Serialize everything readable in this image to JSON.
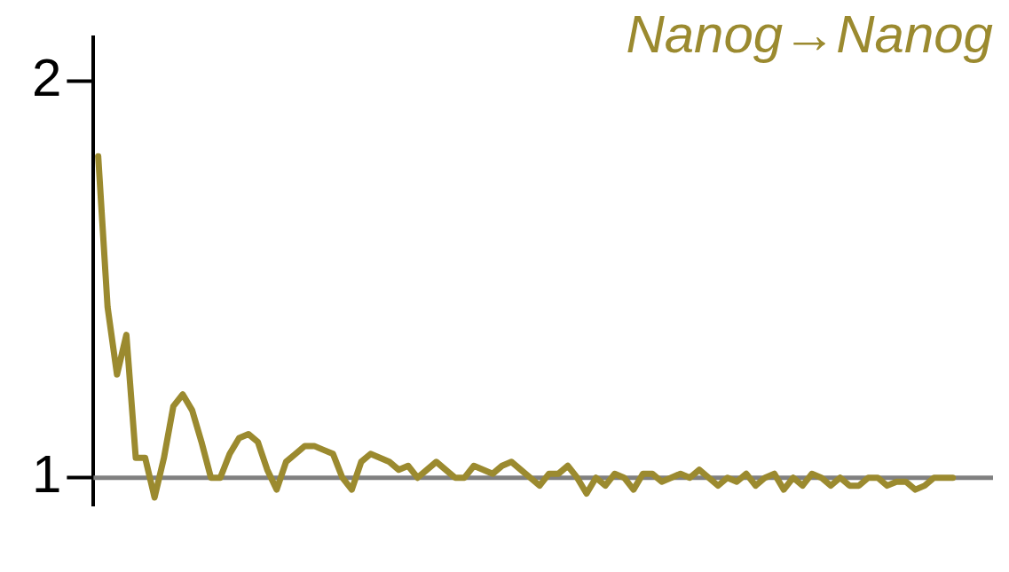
{
  "chart_data": {
    "type": "line",
    "title": "Nanog→Nanog",
    "categories": [
      null,
      null,
      null,
      null,
      null,
      null,
      null,
      null,
      null,
      null,
      null,
      null,
      null,
      null,
      null,
      null,
      null,
      null,
      null,
      null,
      null,
      null,
      null,
      null,
      null,
      null,
      null,
      null,
      null,
      null,
      null,
      null,
      null,
      null,
      null,
      null,
      null,
      null,
      null,
      null,
      null,
      null,
      null,
      null,
      null,
      null,
      null,
      null,
      null,
      null,
      null,
      null,
      null,
      null,
      null,
      null,
      null,
      null,
      null,
      null,
      null,
      null,
      null,
      null,
      null,
      null,
      null,
      null,
      null,
      null,
      null,
      null,
      null,
      null,
      null,
      null,
      null,
      null,
      null,
      null,
      null,
      null,
      null,
      null,
      null,
      null,
      null,
      null,
      null,
      null,
      null,
      null
    ],
    "series": [
      {
        "color": "#9b8a2f",
        "values": [
          1.81,
          1.43,
          1.26,
          1.36,
          1.05,
          1.05,
          0.95,
          1.05,
          1.18,
          1.21,
          1.17,
          1.09,
          1.0,
          1.0,
          1.06,
          1.1,
          1.11,
          1.09,
          1.02,
          0.97,
          1.04,
          1.06,
          1.08,
          1.08,
          1.07,
          1.06,
          1.0,
          0.97,
          1.04,
          1.06,
          1.05,
          1.04,
          1.02,
          1.03,
          1.0,
          1.02,
          1.04,
          1.02,
          1.0,
          1.0,
          1.03,
          1.02,
          1.01,
          1.03,
          1.04,
          1.02,
          1.0,
          0.98,
          1.01,
          1.01,
          1.03,
          1.0,
          0.96,
          1.0,
          0.98,
          1.01,
          1.0,
          0.97,
          1.01,
          1.01,
          0.99,
          1.0,
          1.01,
          1.0,
          1.02,
          1.0,
          0.98,
          1.0,
          0.99,
          1.01,
          0.98,
          1.0,
          1.01,
          0.97,
          1.0,
          0.98,
          1.01,
          1.0,
          0.98,
          1.0,
          0.98,
          0.98,
          1.0,
          1.0,
          0.98,
          0.99,
          0.99,
          0.97,
          0.98,
          1.0,
          1.0,
          1.0
        ]
      }
    ],
    "ylim": [
      0.93,
      2.11
    ],
    "yticks": [
      1,
      2
    ],
    "grid": false,
    "legend": false,
    "marker": "none",
    "line_style": "solid",
    "ref_lines": [
      {
        "axis": "y",
        "value": 1,
        "color": "#808080"
      }
    ]
  }
}
